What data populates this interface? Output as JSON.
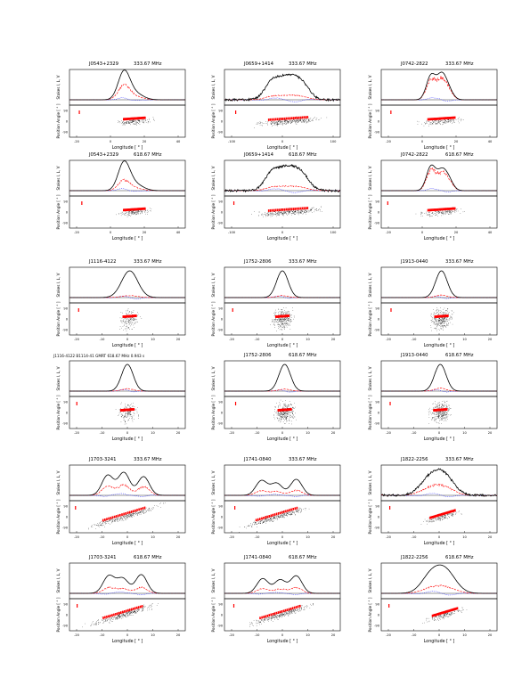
{
  "figure": {
    "panels": [
      {
        "pulsar": "J0543+2329",
        "freq": "333.67 MHz",
        "xticks": [
          "-20",
          "0",
          "20",
          "40"
        ],
        "pa_ticks": [
          "90",
          "0",
          "-90"
        ]
      },
      {
        "pulsar": "J0659+1414",
        "freq": "333.67 MHz",
        "xticks": [
          "-100",
          "0",
          "100"
        ],
        "pa_ticks": [
          "90",
          "0",
          "-90"
        ]
      },
      {
        "pulsar": "J0742-2822",
        "freq": "333.67 MHz",
        "xticks": [
          "-20",
          "0",
          "20",
          "40"
        ],
        "pa_ticks": [
          "90",
          "0",
          "-90"
        ]
      },
      {
        "pulsar": "J0543+2329",
        "freq": "618.67 MHz",
        "xticks": [
          "-20",
          "0",
          "20",
          "40"
        ],
        "pa_ticks": [
          "90",
          "0",
          "-90"
        ]
      },
      {
        "pulsar": "J0659+1414",
        "freq": "618.67 MHz",
        "xticks": [
          "-100",
          "0",
          "100"
        ],
        "pa_ticks": [
          "90",
          "0",
          "-90"
        ]
      },
      {
        "pulsar": "J0742-2822",
        "freq": "618.67 MHz",
        "xticks": [
          "-20",
          "0",
          "20",
          "40"
        ],
        "pa_ticks": [
          "90",
          "0",
          "-90"
        ]
      },
      {
        "pulsar": "J1116-4122",
        "freq": "333.67 MHz",
        "xticks": [
          "-20",
          "-10",
          "0",
          "10",
          "20"
        ],
        "pa_ticks": [
          "90",
          "0",
          "-90"
        ]
      },
      {
        "pulsar": "J1752-2806",
        "freq": "333.67 MHz",
        "xticks": [
          "-20",
          "-10",
          "0",
          "10",
          "20"
        ],
        "pa_ticks": [
          "90",
          "0",
          "-90"
        ]
      },
      {
        "pulsar": "J1913-0440",
        "freq": "333.67 MHz",
        "xticks": [
          "-20",
          "-10",
          "0",
          "10",
          "20"
        ],
        "pa_ticks": [
          "90",
          "0",
          "-90"
        ]
      },
      {
        "pulsar": "J1116-4122",
        "freq": "618.67 MHz",
        "header": "J1116-4122  B1114-41    GMRT    618.67 MHz  0.943 s",
        "xticks": [
          "-20",
          "-10",
          "0",
          "10",
          "20"
        ],
        "pa_ticks": [
          "90",
          "0",
          "-90"
        ]
      },
      {
        "pulsar": "J1752-2806",
        "freq": "618.67 MHz",
        "xticks": [
          "-20",
          "-10",
          "0",
          "10",
          "20"
        ],
        "pa_ticks": [
          "90",
          "0",
          "-90"
        ]
      },
      {
        "pulsar": "J1913-0440",
        "freq": "618.67 MHz",
        "xticks": [
          "-20",
          "-10",
          "0",
          "10",
          "20"
        ],
        "pa_ticks": [
          "90",
          "0",
          "-90"
        ]
      },
      {
        "pulsar": "J1703-3241",
        "freq": "333.67 MHz",
        "xticks": [
          "-20",
          "-10",
          "0",
          "10",
          "20"
        ],
        "pa_ticks": [
          "90",
          "0",
          "-90"
        ]
      },
      {
        "pulsar": "J1741-0840",
        "freq": "333.67 MHz",
        "xticks": [
          "-20",
          "-10",
          "0",
          "10",
          "20"
        ],
        "pa_ticks": [
          "90",
          "0",
          "-90"
        ]
      },
      {
        "pulsar": "J1822-2256",
        "freq": "333.67 MHz",
        "xticks": [
          "-20",
          "-10",
          "0",
          "10",
          "20"
        ],
        "pa_ticks": [
          "90",
          "0",
          "-90"
        ]
      },
      {
        "pulsar": "J1703-3241",
        "freq": "618.67 MHz",
        "xticks": [
          "-20",
          "-10",
          "0",
          "10",
          "20"
        ],
        "pa_ticks": [
          "90",
          "0",
          "-90"
        ]
      },
      {
        "pulsar": "J1741-0840",
        "freq": "618.67 MHz",
        "xticks": [
          "-20",
          "-10",
          "0",
          "10",
          "20"
        ],
        "pa_ticks": [
          "90",
          "0",
          "-90"
        ]
      },
      {
        "pulsar": "J1822-2256",
        "freq": "618.67 MHz",
        "xticks": [
          "-20",
          "-10",
          "0",
          "10",
          "20"
        ],
        "pa_ticks": [
          "90",
          "0",
          "-90"
        ]
      }
    ],
    "ylabel_top": "Stokes I, L, V",
    "ylabel_bottom": "Position Angle [ ° ]",
    "xlabel": "Longitude [ ° ]",
    "colors": {
      "stokes_i": "#000000",
      "linear": "#ff0000",
      "circular": "#0000ff",
      "pa_points": "#ff0000",
      "scatter": "#000000"
    }
  }
}
